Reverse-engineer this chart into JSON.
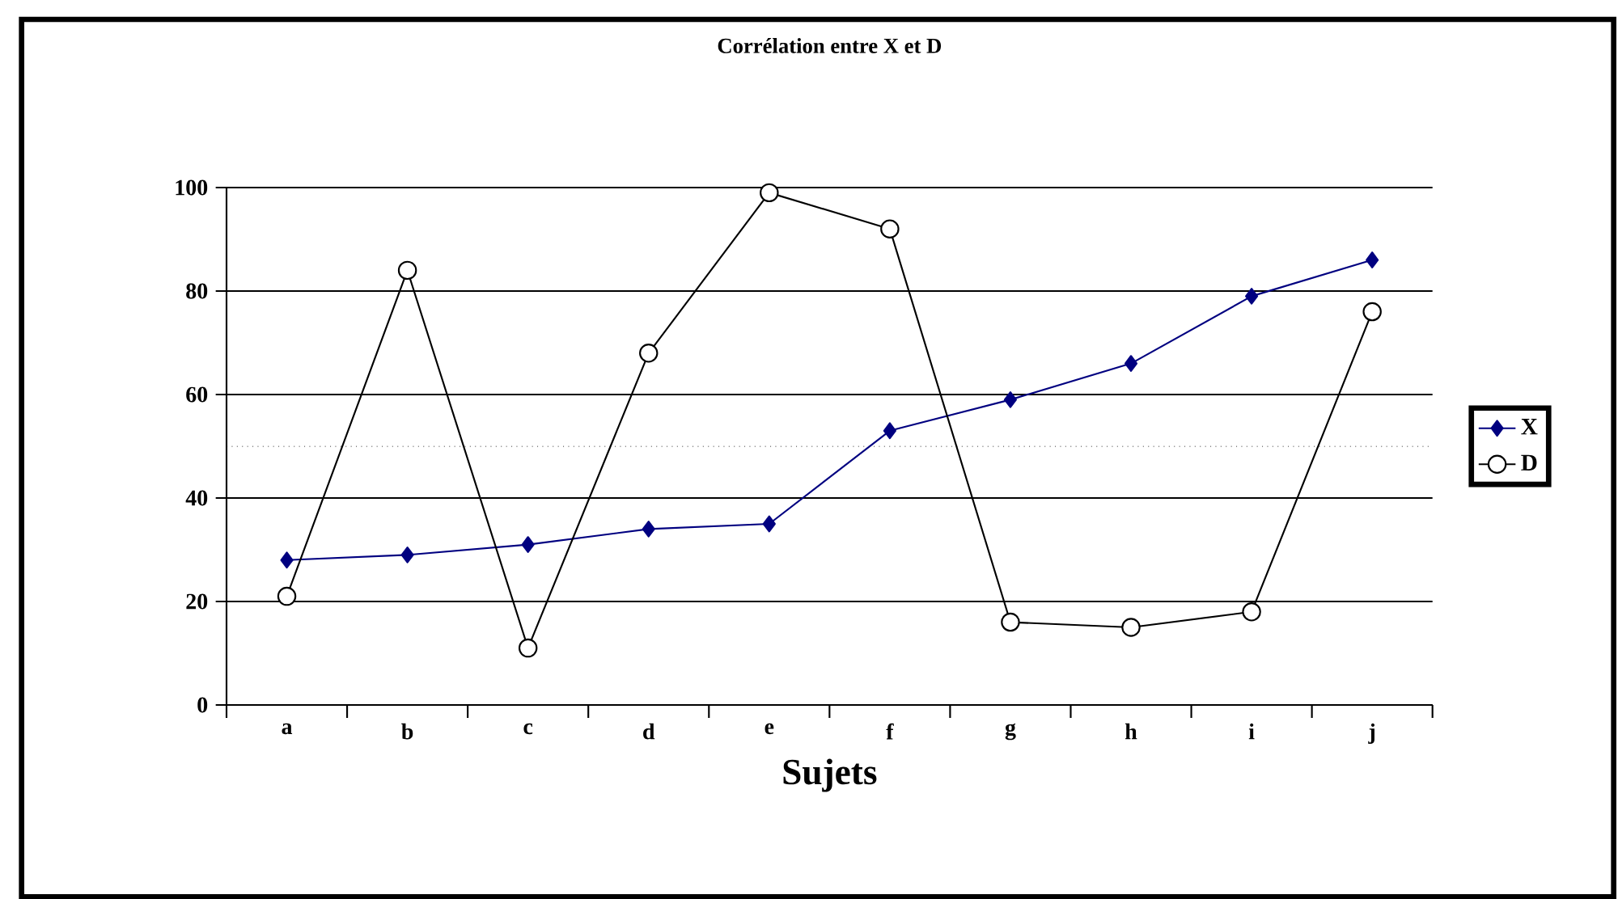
{
  "chart_data": {
    "type": "line",
    "title": "Corrélation entre X et D",
    "xlabel": "Sujets",
    "categories": [
      "a",
      "b",
      "c",
      "d",
      "e",
      "f",
      "g",
      "h",
      "i",
      "j"
    ],
    "series": [
      {
        "name": "X",
        "color": "#000080",
        "marker": "diamond",
        "values": [
          28,
          29,
          31,
          34,
          35,
          53,
          59,
          66,
          79,
          86
        ]
      },
      {
        "name": "D",
        "color": "#000000",
        "marker": "circle",
        "values": [
          21,
          84,
          11,
          68,
          99,
          92,
          16,
          15,
          18,
          76
        ]
      }
    ],
    "ylim": [
      0,
      100
    ],
    "yticks": [
      0,
      20,
      40,
      60,
      80,
      100
    ],
    "grid": "y",
    "legend": "right",
    "ref_lines": [
      {
        "axis": "y",
        "value": 50,
        "line_style": "dotted"
      }
    ]
  }
}
